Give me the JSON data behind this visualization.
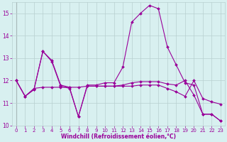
{
  "xlabel": "Windchill (Refroidissement éolien,°C)",
  "x": [
    0,
    1,
    2,
    3,
    4,
    5,
    6,
    7,
    8,
    9,
    10,
    11,
    12,
    13,
    14,
    15,
    16,
    17,
    18,
    19,
    20,
    21,
    22,
    23
  ],
  "line1": [
    12.0,
    11.3,
    11.6,
    13.3,
    12.9,
    11.8,
    11.7,
    10.4,
    11.8,
    11.8,
    11.9,
    11.9,
    12.6,
    14.6,
    15.0,
    15.35,
    15.2,
    13.5,
    12.7,
    11.9,
    11.8,
    10.5,
    10.5,
    10.2
  ],
  "line2": [
    12.0,
    11.3,
    11.6,
    13.3,
    12.85,
    11.75,
    11.65,
    10.4,
    11.75,
    11.75,
    11.75,
    11.75,
    11.8,
    11.9,
    11.95,
    11.95,
    11.95,
    11.85,
    11.8,
    12.0,
    11.35,
    10.5,
    10.5,
    10.2
  ],
  "line3": [
    12.0,
    11.3,
    11.65,
    11.7,
    11.7,
    11.7,
    11.7,
    11.7,
    11.75,
    11.75,
    11.75,
    11.75,
    11.75,
    11.75,
    11.8,
    11.8,
    11.8,
    11.65,
    11.5,
    11.3,
    12.0,
    11.2,
    11.05,
    10.95
  ],
  "line_color": "#990099",
  "bg_color": "#d8f0f0",
  "grid_color": "#b8d0d0",
  "ylim": [
    10,
    15.5
  ],
  "yticks": [
    10,
    11,
    12,
    13,
    14,
    15
  ],
  "xticks": [
    0,
    1,
    2,
    3,
    4,
    5,
    6,
    7,
    8,
    9,
    10,
    11,
    12,
    13,
    14,
    15,
    16,
    17,
    18,
    19,
    20,
    21,
    22,
    23
  ],
  "marker": "D",
  "markersize": 2.0,
  "linewidth": 0.8,
  "xlabel_fontsize": 5.5,
  "tick_fontsize": 5.0,
  "ytick_fontsize": 5.5
}
